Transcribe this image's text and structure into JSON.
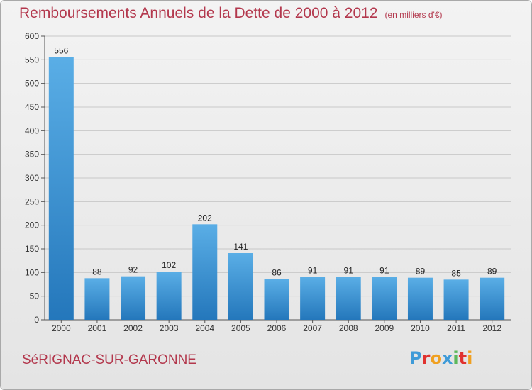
{
  "header": {
    "title": "Remboursements Annuels de la Dette de 2000 à 2012",
    "unit": "(en milliers d'€)"
  },
  "footer": {
    "city": "SéRIGNAC-SUR-GARONNE",
    "logo": [
      "P",
      "r",
      "o",
      "x",
      "i",
      "t",
      "i"
    ]
  },
  "colors": {
    "title": "#b3384d",
    "bar_top": "#5aaee6",
    "bar_bottom": "#2477bb",
    "logo": [
      "#3f9bd8",
      "#e0322f",
      "#f0a020",
      "#3f9bd8",
      "#5cb85c",
      "#e0322f",
      "#f0a020"
    ]
  },
  "chart_data": {
    "type": "bar",
    "categories": [
      "2000",
      "2001",
      "2002",
      "2003",
      "2004",
      "2005",
      "2006",
      "2007",
      "2008",
      "2009",
      "2010",
      "2011",
      "2012"
    ],
    "values": [
      556,
      88,
      92,
      102,
      202,
      141,
      86,
      91,
      91,
      91,
      89,
      85,
      89
    ],
    "ylim": [
      0,
      600
    ],
    "yticks": [
      0,
      50,
      100,
      150,
      200,
      250,
      300,
      350,
      400,
      450,
      500,
      550,
      600
    ],
    "grid": true,
    "data_labels": true
  }
}
